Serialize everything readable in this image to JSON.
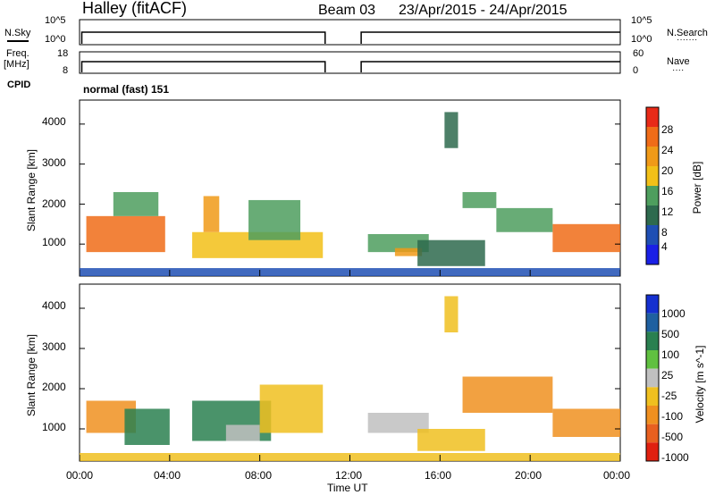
{
  "header": {
    "station": "Halley (fitACF)",
    "beam": "Beam 03",
    "date_range": "23/Apr/2015 - 24/Apr/2015"
  },
  "panels": {
    "nsky": {
      "left_label": "N.Sky",
      "left_ticks": [
        "10^5",
        "10^0"
      ],
      "right_label": "N.Search",
      "right_ticks": [
        "10^5",
        "10^0"
      ],
      "right_legend": "·······"
    },
    "freq": {
      "left_label_1": "Freq.",
      "left_label_2": "[MHz]",
      "left_ticks": [
        "18",
        "8"
      ],
      "right_label": "Nave",
      "right_ticks": [
        "60",
        "0"
      ],
      "right_legend": "····"
    },
    "cpid": {
      "label": "CPID",
      "program": "normal (fast) 151"
    }
  },
  "colors": {
    "power_scale": [
      "#1a20e6",
      "#1f4fb4",
      "#2e6a4e",
      "#4e9e5e",
      "#f2c018",
      "#f09a18",
      "#f06c18",
      "#e82a18"
    ],
    "velocity_scale": [
      "#1530d0",
      "#1f60a0",
      "#2a8050",
      "#60c040",
      "#c0c0c0",
      "#f0c020",
      "#f09020",
      "#e86020",
      "#e02010"
    ]
  },
  "chart_data": [
    {
      "type": "heatmap",
      "title": "",
      "xlabel": "Time UT",
      "ylabel": "Slant Range [km]",
      "x_ticks": [
        "00:00",
        "04:00",
        "08:00",
        "12:00",
        "16:00",
        "20:00",
        "00:00"
      ],
      "y_ticks": [
        1000,
        2000,
        3000,
        4000
      ],
      "xlim_hours": [
        0,
        24
      ],
      "ylim_km": [
        200,
        4600
      ],
      "colorbar_label": "Power [dB]",
      "colorbar_ticks": [
        4,
        8,
        12,
        16,
        20,
        24,
        28
      ],
      "data_gap_hours": [
        10.9,
        12.5
      ],
      "echo_regions": [
        {
          "t_start": 0.3,
          "t_end": 3.8,
          "range_low": 800,
          "range_high": 1700,
          "power_db": 26
        },
        {
          "t_start": 1.5,
          "t_end": 3.5,
          "range_low": 1700,
          "range_high": 2300,
          "power_db": 12
        },
        {
          "t_start": 5.0,
          "t_end": 10.8,
          "range_low": 650,
          "range_high": 1300,
          "power_db": 18
        },
        {
          "t_start": 5.5,
          "t_end": 6.2,
          "range_low": 1300,
          "range_high": 2200,
          "power_db": 22
        },
        {
          "t_start": 7.5,
          "t_end": 9.8,
          "range_low": 1100,
          "range_high": 2100,
          "power_db": 14
        },
        {
          "t_start": 12.8,
          "t_end": 15.5,
          "range_low": 800,
          "range_high": 1250,
          "power_db": 12
        },
        {
          "t_start": 14.0,
          "t_end": 15.2,
          "range_low": 700,
          "range_high": 900,
          "power_db": 22
        },
        {
          "t_start": 15.0,
          "t_end": 18.0,
          "range_low": 450,
          "range_high": 1100,
          "power_db": 10
        },
        {
          "t_start": 17.0,
          "t_end": 18.5,
          "range_low": 1900,
          "range_high": 2300,
          "power_db": 14
        },
        {
          "t_start": 18.5,
          "t_end": 21.0,
          "range_low": 1300,
          "range_high": 1900,
          "power_db": 12
        },
        {
          "t_start": 21.0,
          "t_end": 24.0,
          "range_low": 800,
          "range_high": 1500,
          "power_db": 26
        },
        {
          "t_start": 16.2,
          "t_end": 16.8,
          "range_low": 3400,
          "range_high": 4300,
          "power_db": 8
        },
        {
          "t_start": 0.0,
          "t_end": 24.0,
          "range_low": 200,
          "range_high": 400,
          "power_db": 6
        }
      ]
    },
    {
      "type": "heatmap",
      "title": "",
      "xlabel": "Time UT",
      "ylabel": "Slant Range [km]",
      "x_ticks": [
        "00:00",
        "04:00",
        "08:00",
        "12:00",
        "16:00",
        "20:00",
        "00:00"
      ],
      "y_ticks": [
        1000,
        2000,
        3000,
        4000
      ],
      "xlim_hours": [
        0,
        24
      ],
      "ylim_km": [
        200,
        4600
      ],
      "colorbar_label": "Velocity [m s^-1]",
      "colorbar_ticks": [
        1000,
        500,
        100,
        25,
        -25,
        -100,
        -500,
        -1000
      ],
      "data_gap_hours": [
        10.9,
        12.5
      ],
      "echo_regions": [
        {
          "t_start": 0.3,
          "t_end": 2.5,
          "range_low": 900,
          "range_high": 1700,
          "velocity": -300
        },
        {
          "t_start": 2.0,
          "t_end": 4.0,
          "range_low": 600,
          "range_high": 1500,
          "velocity": 300
        },
        {
          "t_start": 5.0,
          "t_end": 8.5,
          "range_low": 700,
          "range_high": 1700,
          "velocity": 100
        },
        {
          "t_start": 6.5,
          "t_end": 8.0,
          "range_low": 700,
          "range_high": 1100,
          "velocity": 0
        },
        {
          "t_start": 8.0,
          "t_end": 10.8,
          "range_low": 900,
          "range_high": 2100,
          "velocity": -100
        },
        {
          "t_start": 12.8,
          "t_end": 15.5,
          "range_low": 900,
          "range_high": 1400,
          "velocity": 0
        },
        {
          "t_start": 15.0,
          "t_end": 18.0,
          "range_low": 450,
          "range_high": 1000,
          "velocity": -60
        },
        {
          "t_start": 17.0,
          "t_end": 21.0,
          "range_low": 1400,
          "range_high": 2300,
          "velocity": -300
        },
        {
          "t_start": 21.0,
          "t_end": 24.0,
          "range_low": 800,
          "range_high": 1500,
          "velocity": -300
        },
        {
          "t_start": 16.2,
          "t_end": 16.8,
          "range_low": 3400,
          "range_high": 4300,
          "velocity": -100
        },
        {
          "t_start": 0.0,
          "t_end": 24.0,
          "range_low": 200,
          "range_high": 400,
          "velocity": -60
        }
      ]
    }
  ]
}
